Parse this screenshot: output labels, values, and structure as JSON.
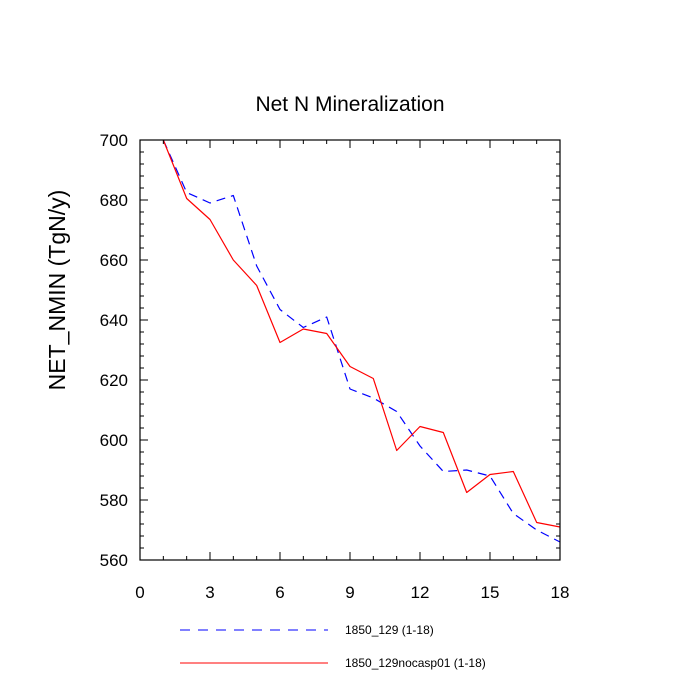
{
  "chart_data": {
    "type": "line",
    "title": "Net N Mineralization",
    "xlabel": "",
    "ylabel": "NET_NMIN  (TgN/y)",
    "xlim": [
      0,
      18
    ],
    "ylim": [
      560,
      700
    ],
    "xticks": [
      0,
      3,
      6,
      9,
      12,
      15,
      18
    ],
    "xtick_labels": [
      "0",
      "3",
      "6",
      "9",
      "12",
      "15",
      "18"
    ],
    "yticks": [
      560,
      580,
      600,
      620,
      640,
      660,
      680,
      700
    ],
    "ytick_labels": [
      "560",
      "580",
      "600",
      "620",
      "640",
      "660",
      "680",
      "700"
    ],
    "x": [
      1,
      2,
      3,
      4,
      5,
      6,
      7,
      8,
      9,
      10,
      11,
      12,
      13,
      14,
      15,
      16,
      17,
      18
    ],
    "series": [
      {
        "name": "1850_129 (1-18)",
        "color": "#0000ff",
        "style": "dashed",
        "values": [
          700,
          682.5,
          679,
          681.5,
          658,
          643.5,
          637.5,
          641,
          617,
          614,
          609.5,
          598,
          589.5,
          590,
          588,
          575.5,
          570,
          566
        ]
      },
      {
        "name": "1850_129nocasp01 (1-18)",
        "color": "#ff0000",
        "style": "solid",
        "values": [
          700,
          680.5,
          673.5,
          660,
          651.5,
          632.5,
          637,
          635.5,
          624.5,
          620.5,
          596.5,
          604.5,
          602.5,
          582.5,
          588.5,
          589.5,
          572.5,
          571
        ]
      }
    ],
    "legend_position": "bottom-left",
    "grid": false
  }
}
